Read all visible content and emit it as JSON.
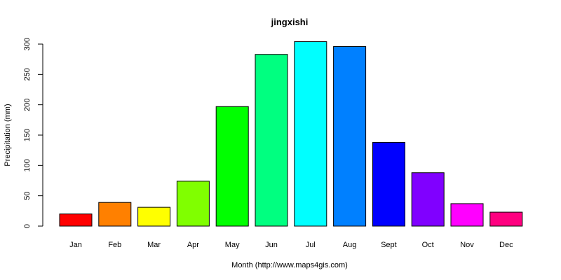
{
  "chart_data": {
    "type": "bar",
    "title": "jingxishi",
    "xlabel": "Month (http://www.maps4gis.com)",
    "ylabel": "Precipitation (mm)",
    "categories": [
      "Jan",
      "Feb",
      "Mar",
      "Apr",
      "May",
      "Jun",
      "Jul",
      "Aug",
      "Sept",
      "Oct",
      "Nov",
      "Dec"
    ],
    "values": [
      20,
      39,
      31,
      74,
      197,
      283,
      304,
      296,
      138,
      88,
      37,
      23
    ],
    "colors": [
      "#ff0000",
      "#ff8000",
      "#ffff00",
      "#80ff00",
      "#00ff00",
      "#00ff80",
      "#00ffff",
      "#0080ff",
      "#0000ff",
      "#8000ff",
      "#ff00ff",
      "#ff0080"
    ],
    "ylim": [
      0,
      300
    ],
    "yticks": [
      "0",
      "50",
      "100",
      "150",
      "200",
      "250",
      "300"
    ],
    "grid": false,
    "legend": "none"
  }
}
